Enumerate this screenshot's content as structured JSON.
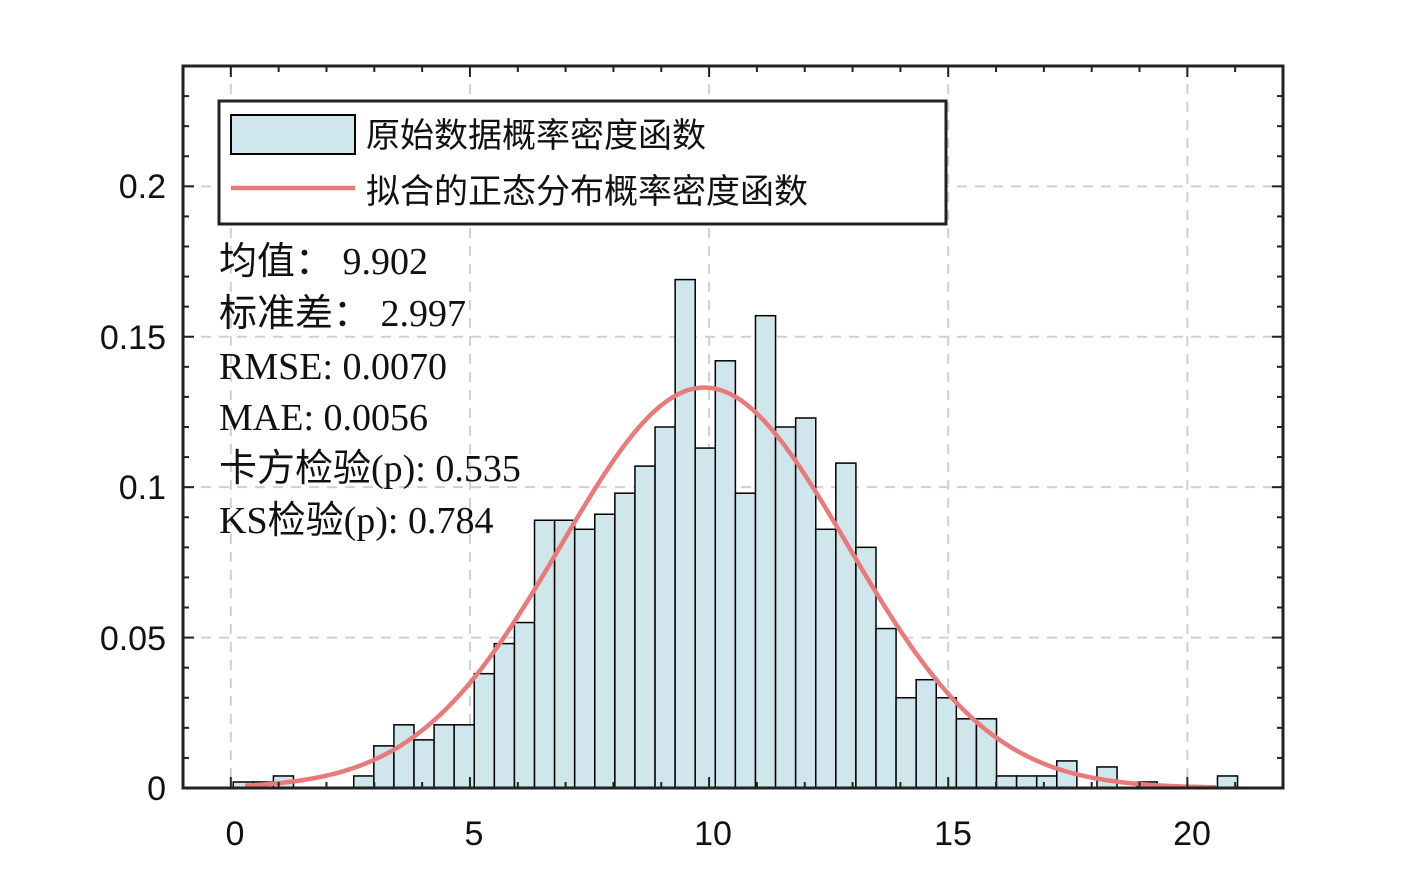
{
  "chart_data": {
    "type": "bar",
    "x_ticks": [
      "0",
      "5",
      "10",
      "15",
      "20"
    ],
    "y_ticks": [
      "0",
      "0.05",
      "0.1",
      "0.15",
      "0.2"
    ],
    "xlim": [
      -1,
      22
    ],
    "ylim": [
      0,
      0.24
    ],
    "grid": true,
    "legend_position": "top-left",
    "histogram": {
      "name": "原始数据概率密度函数",
      "bin_width": 0.42,
      "bins": [
        {
          "x0": 0.05,
          "y": 0.002
        },
        {
          "x0": 0.47,
          "y": 0.002
        },
        {
          "x0": 0.89,
          "y": 0.004
        },
        {
          "x0": 1.31,
          "y": 0.0
        },
        {
          "x0": 1.73,
          "y": 0.0
        },
        {
          "x0": 2.15,
          "y": 0.0
        },
        {
          "x0": 2.57,
          "y": 0.004
        },
        {
          "x0": 2.99,
          "y": 0.014
        },
        {
          "x0": 3.41,
          "y": 0.021
        },
        {
          "x0": 3.83,
          "y": 0.016
        },
        {
          "x0": 4.25,
          "y": 0.021
        },
        {
          "x0": 4.67,
          "y": 0.021
        },
        {
          "x0": 5.09,
          "y": 0.038
        },
        {
          "x0": 5.51,
          "y": 0.048
        },
        {
          "x0": 5.93,
          "y": 0.055
        },
        {
          "x0": 6.35,
          "y": 0.089
        },
        {
          "x0": 6.77,
          "y": 0.089
        },
        {
          "x0": 7.19,
          "y": 0.086
        },
        {
          "x0": 7.61,
          "y": 0.091
        },
        {
          "x0": 8.03,
          "y": 0.098
        },
        {
          "x0": 8.45,
          "y": 0.107
        },
        {
          "x0": 8.87,
          "y": 0.12
        },
        {
          "x0": 9.29,
          "y": 0.169
        },
        {
          "x0": 9.71,
          "y": 0.113
        },
        {
          "x0": 10.13,
          "y": 0.142
        },
        {
          "x0": 10.55,
          "y": 0.098
        },
        {
          "x0": 10.97,
          "y": 0.157
        },
        {
          "x0": 11.39,
          "y": 0.12
        },
        {
          "x0": 11.81,
          "y": 0.123
        },
        {
          "x0": 12.23,
          "y": 0.086
        },
        {
          "x0": 12.65,
          "y": 0.108
        },
        {
          "x0": 13.07,
          "y": 0.08
        },
        {
          "x0": 13.49,
          "y": 0.053
        },
        {
          "x0": 13.91,
          "y": 0.03
        },
        {
          "x0": 14.33,
          "y": 0.036
        },
        {
          "x0": 14.75,
          "y": 0.03
        },
        {
          "x0": 15.17,
          "y": 0.023
        },
        {
          "x0": 15.59,
          "y": 0.023
        },
        {
          "x0": 16.01,
          "y": 0.004
        },
        {
          "x0": 16.43,
          "y": 0.004
        },
        {
          "x0": 16.85,
          "y": 0.004
        },
        {
          "x0": 17.27,
          "y": 0.009
        },
        {
          "x0": 17.69,
          "y": 0.0
        },
        {
          "x0": 18.11,
          "y": 0.007
        },
        {
          "x0": 18.53,
          "y": 0.0
        },
        {
          "x0": 18.95,
          "y": 0.002
        },
        {
          "x0": 19.37,
          "y": 0.0
        },
        {
          "x0": 19.79,
          "y": 0.0
        },
        {
          "x0": 20.21,
          "y": 0.0
        },
        {
          "x0": 20.63,
          "y": 0.004
        }
      ]
    },
    "fit_curve": {
      "name": "拟合的正态分布概率密度函数",
      "type": "line",
      "mean": 9.902,
      "std": 2.997,
      "x_range": [
        0.3,
        20.6
      ]
    },
    "colors": {
      "bar_fill": "#cfe6ec",
      "bar_edge": "#000000",
      "curve": "#e87a7b",
      "grid": "#d0d0d0",
      "axis": "#222222"
    },
    "annotations": [
      "均值： 9.902",
      "标准差： 2.997",
      "RMSE: 0.0070",
      "MAE: 0.0056",
      "卡方检验(p): 0.535",
      "KS检验(p): 0.784"
    ]
  }
}
